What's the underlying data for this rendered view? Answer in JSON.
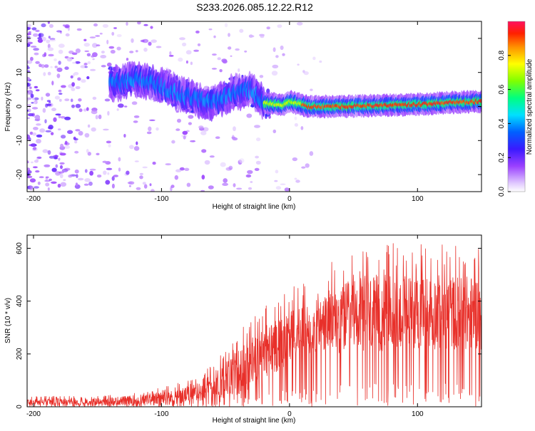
{
  "title": "S233.2026.085.12.22.R12",
  "chart_data": [
    {
      "type": "heatmap",
      "title": "S233.2026.085.12.22.R12",
      "xlabel": "Height of straight line (km)",
      "ylabel": "Frequency (Hz)",
      "xlim": [
        -205,
        150
      ],
      "ylim": [
        -25,
        25
      ],
      "xticks": [
        -200,
        -100,
        0,
        100
      ],
      "yticks": [
        -20,
        -10,
        0,
        10,
        20
      ],
      "colorbar": {
        "label": "Normalized spectral amplitude",
        "range": [
          0,
          1
        ],
        "ticks": [
          0.0,
          0.2,
          0.4,
          0.6,
          0.8
        ]
      },
      "ridge": [
        {
          "x": -135,
          "f": 7
        },
        {
          "x": -120,
          "f": 8
        },
        {
          "x": -100,
          "f": 6
        },
        {
          "x": -80,
          "f": 3
        },
        {
          "x": -60,
          "f": 1
        },
        {
          "x": -45,
          "f": 4
        },
        {
          "x": -30,
          "f": 5
        },
        {
          "x": -20,
          "f": 1
        },
        {
          "x": -5,
          "f": 0.5
        },
        {
          "x": 0,
          "f": 1.5
        },
        {
          "x": 15,
          "f": 0
        },
        {
          "x": 40,
          "f": 0
        },
        {
          "x": 60,
          "f": 0.2
        },
        {
          "x": 100,
          "f": 0.6
        },
        {
          "x": 130,
          "f": 1.2
        },
        {
          "x": 150,
          "f": 1.5
        }
      ]
    },
    {
      "type": "line",
      "xlabel": "Height of straight line (km)",
      "ylabel": "SNR (10 * v/v)",
      "xlim": [
        -205,
        150
      ],
      "ylim": [
        0,
        650
      ],
      "xticks": [
        -200,
        -100,
        0,
        100
      ],
      "yticks": [
        0,
        200,
        400,
        600
      ],
      "series": [
        {
          "name": "SNR",
          "color": "#e8302a",
          "envelope": [
            {
              "x": -205,
              "mean": 18,
              "max": 40
            },
            {
              "x": -150,
              "mean": 18,
              "max": 40
            },
            {
              "x": -120,
              "mean": 25,
              "max": 60
            },
            {
              "x": -90,
              "mean": 35,
              "max": 85
            },
            {
              "x": -70,
              "mean": 55,
              "max": 120
            },
            {
              "x": -55,
              "mean": 90,
              "max": 200
            },
            {
              "x": -40,
              "mean": 130,
              "max": 290
            },
            {
              "x": -20,
              "mean": 200,
              "max": 380
            },
            {
              "x": -10,
              "mean": 240,
              "max": 440
            },
            {
              "x": 0,
              "mean": 270,
              "max": 450
            },
            {
              "x": 20,
              "mean": 300,
              "max": 480
            },
            {
              "x": 35,
              "mean": 330,
              "max": 560
            },
            {
              "x": 60,
              "mean": 350,
              "max": 620
            },
            {
              "x": 100,
              "mean": 360,
              "max": 620
            },
            {
              "x": 150,
              "mean": 355,
              "max": 610
            }
          ]
        }
      ]
    }
  ]
}
